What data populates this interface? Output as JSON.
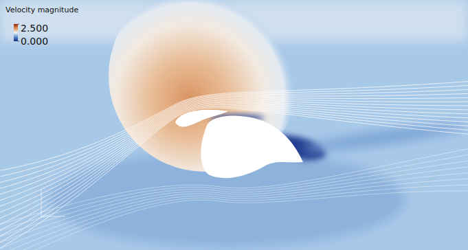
{
  "chart_data": {
    "type": "heatmap",
    "title": "Velocity magnitude",
    "colorbar": {
      "range": [
        0,
        2.5
      ],
      "ticks": [
        {
          "value": 2.5,
          "label": "2.500"
        },
        {
          "value": 0,
          "label": "0.000"
        }
      ]
    }
  }
}
